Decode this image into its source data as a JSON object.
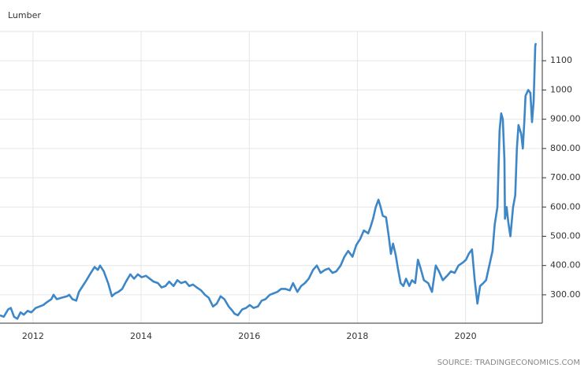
{
  "chart_data": {
    "type": "line",
    "title": "Lumber",
    "source": "SOURCE: TRADINGECONOMICS.COM",
    "color": "#3d87c8",
    "grid": true,
    "x": [
      2011.39,
      2011.46,
      2011.54,
      2011.59,
      2011.65,
      2011.71,
      2011.77,
      2011.83,
      2011.9,
      2011.97,
      2012.05,
      2012.12,
      2012.19,
      2012.26,
      2012.34,
      2012.38,
      2012.44,
      2012.53,
      2012.63,
      2012.67,
      2012.73,
      2012.8,
      2012.85,
      2012.92,
      2012.99,
      2013.07,
      2013.14,
      2013.2,
      2013.24,
      2013.31,
      2013.39,
      2013.46,
      2013.52,
      2013.58,
      2013.65,
      2013.72,
      2013.8,
      2013.87,
      2013.94,
      2014.01,
      2014.09,
      2014.16,
      2014.23,
      2014.31,
      2014.38,
      2014.45,
      2014.52,
      2014.6,
      2014.67,
      2014.74,
      2014.82,
      2014.89,
      2014.96,
      2015.03,
      2015.11,
      2015.18,
      2015.25,
      2015.33,
      2015.4,
      2015.47,
      2015.54,
      2015.62,
      2015.69,
      2015.73,
      2015.79,
      2015.87,
      2015.94,
      2016.01,
      2016.08,
      2016.16,
      2016.23,
      2016.3,
      2016.38,
      2016.45,
      2016.52,
      2016.59,
      2016.67,
      2016.75,
      2016.81,
      2016.89,
      2016.96,
      2017.03,
      2017.1,
      2017.18,
      2017.25,
      2017.32,
      2017.4,
      2017.47,
      2017.54,
      2017.61,
      2017.69,
      2017.76,
      2017.83,
      2017.91,
      2017.98,
      2018.05,
      2018.12,
      2018.2,
      2018.24,
      2018.29,
      2018.34,
      2018.39,
      2018.43,
      2018.47,
      2018.53,
      2018.58,
      2018.62,
      2018.66,
      2018.71,
      2018.75,
      2018.8,
      2018.85,
      2018.9,
      2018.96,
      2019.01,
      2019.07,
      2019.12,
      2019.17,
      2019.23,
      2019.31,
      2019.38,
      2019.45,
      2019.51,
      2019.58,
      2019.66,
      2019.73,
      2019.8,
      2019.87,
      2019.95,
      2020.01,
      2020.06,
      2020.12,
      2020.17,
      2020.22,
      2020.27,
      2020.33,
      2020.38,
      2020.44,
      2020.5,
      2020.54,
      2020.59,
      2020.63,
      2020.66,
      2020.69,
      2020.72,
      2020.73,
      2020.76,
      2020.79,
      2020.83,
      2020.88,
      2020.92,
      2020.95,
      2020.98,
      2021.03,
      2021.06,
      2021.09,
      2021.11,
      2021.16,
      2021.2,
      2021.23,
      2021.26,
      2021.29,
      2021.3
    ],
    "values": [
      230,
      225,
      250,
      255,
      225,
      218,
      240,
      232,
      245,
      240,
      255,
      260,
      265,
      275,
      285,
      300,
      285,
      290,
      295,
      300,
      285,
      280,
      310,
      330,
      350,
      375,
      395,
      385,
      400,
      380,
      340,
      295,
      305,
      310,
      320,
      345,
      370,
      355,
      370,
      360,
      365,
      355,
      345,
      340,
      325,
      330,
      345,
      330,
      350,
      340,
      345,
      330,
      335,
      325,
      315,
      300,
      290,
      260,
      270,
      295,
      285,
      260,
      245,
      235,
      230,
      250,
      255,
      265,
      255,
      260,
      280,
      285,
      300,
      305,
      310,
      320,
      320,
      315,
      340,
      310,
      330,
      340,
      355,
      385,
      400,
      375,
      385,
      390,
      375,
      380,
      400,
      430,
      450,
      430,
      470,
      490,
      520,
      510,
      530,
      560,
      600,
      625,
      600,
      570,
      565,
      500,
      440,
      475,
      435,
      390,
      340,
      330,
      355,
      330,
      350,
      340,
      420,
      390,
      350,
      340,
      310,
      400,
      380,
      350,
      365,
      380,
      375,
      400,
      410,
      420,
      440,
      455,
      350,
      270,
      330,
      340,
      350,
      400,
      450,
      540,
      600,
      860,
      920,
      900,
      760,
      560,
      600,
      550,
      500,
      600,
      640,
      800,
      880,
      850,
      800,
      900,
      980,
      1000,
      990,
      890,
      960,
      1150,
      1160
    ],
    "xlim": [
      2011.39,
      2021.42
    ],
    "xticks": [
      2012,
      2014,
      2016,
      2018,
      2020
    ],
    "ylim": [
      203,
      1200
    ],
    "yticks": [
      {
        "value": 300,
        "label": "300.00"
      },
      {
        "value": 400,
        "label": "400.00"
      },
      {
        "value": 500,
        "label": "500.00"
      },
      {
        "value": 600,
        "label": "600.00"
      },
      {
        "value": 700,
        "label": "700.00"
      },
      {
        "value": 800,
        "label": "800.00"
      },
      {
        "value": 900,
        "label": "900.00"
      },
      1000,
      1100
    ]
  }
}
